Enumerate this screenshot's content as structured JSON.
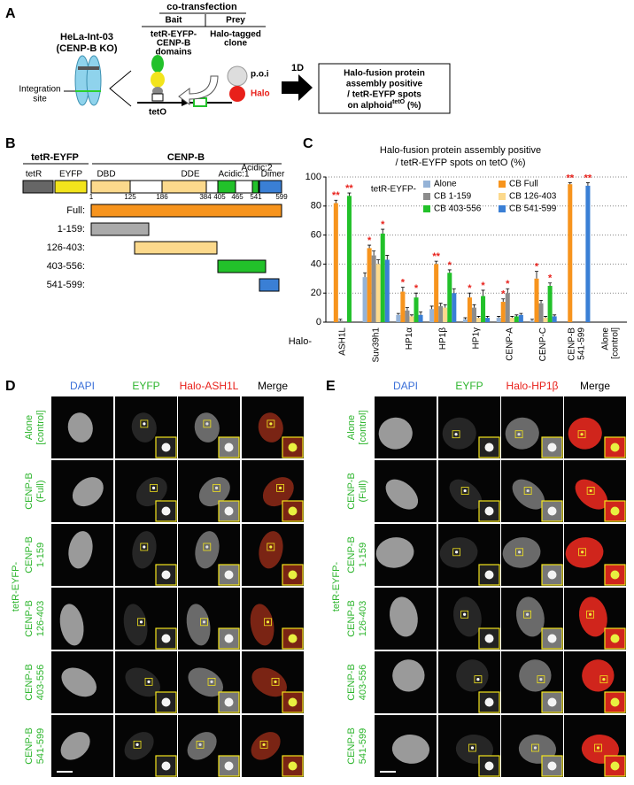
{
  "panel_a": {
    "label": "A",
    "cotransfection": "co-transfection",
    "bait": "Bait",
    "prey": "Prey",
    "bait_desc": [
      "tetR-EYFP-",
      "CENP-B",
      "domains"
    ],
    "prey_desc": [
      "Halo-tagged",
      "clone"
    ],
    "cell_line": [
      "HeLa-Int-03",
      "(CENP-B KO)"
    ],
    "integration": [
      "Integration",
      "site"
    ],
    "teto": "tetO",
    "poi": "p.o.i",
    "halo": "Halo",
    "step": "1D",
    "result_box": [
      "Halo-fusion protein",
      "assembly positive",
      "/ tetR-EYFP spots"
    ],
    "result_last": {
      "text": "on alphoid",
      "sup": "tetO",
      "tail": " (%)"
    }
  },
  "panel_b": {
    "label": "B",
    "tetr_eyfp": "tetR-EYFP",
    "cenpb": "CENP-B",
    "domains": [
      "tetR",
      "EYFP",
      "DBD",
      "DDE",
      "Acidic:1",
      "Acidic:2",
      "Dimer"
    ],
    "positions": [
      "1",
      "125",
      "186",
      "384",
      "405",
      "465",
      "541",
      "599"
    ],
    "constructs": [
      "Full:",
      "1-159:",
      "126-403:",
      "403-556:",
      "541-599:"
    ]
  },
  "chart_data": {
    "type": "bar",
    "panel_label": "C",
    "title": [
      "Halo-fusion protein assembly positive",
      "/ tetR-EYFP spots on tetO (%)"
    ],
    "x_label": "Halo-",
    "legend_title": "tetR-EYFP-",
    "categories": [
      [
        "ASH1L"
      ],
      [
        "Suv39h1"
      ],
      [
        "HP1α"
      ],
      [
        "HP1β"
      ],
      [
        "HP1γ"
      ],
      [
        "CENP-A"
      ],
      [
        "CENP-C"
      ],
      [
        "CENP-B",
        "541-599"
      ],
      [
        "Alone",
        "[control]"
      ]
    ],
    "ylim": [
      0,
      100
    ],
    "yticks": [
      0,
      20,
      40,
      60,
      80,
      100
    ],
    "grid": true,
    "series": [
      {
        "name": "Alone",
        "color": "#95b3d7",
        "values": [
          0,
          31,
          5,
          9,
          2,
          3,
          1,
          0,
          0
        ],
        "errors": [
          0,
          3,
          1,
          2,
          1,
          1,
          1,
          0,
          0
        ],
        "significance": [
          null,
          null,
          null,
          null,
          null,
          null,
          null,
          null,
          null
        ]
      },
      {
        "name": "CB Full",
        "color": "#f7941d",
        "values": [
          82,
          51,
          21,
          40,
          17,
          14,
          30,
          95,
          0
        ],
        "errors": [
          2,
          2,
          3,
          2,
          3,
          2,
          5,
          1,
          0
        ],
        "significance": [
          "**",
          "*",
          "*",
          "**",
          "*",
          "*",
          "*",
          "**",
          null
        ]
      },
      {
        "name": "CB 1-159",
        "color": "#8c8c8c",
        "values": [
          1,
          46,
          8,
          11,
          10,
          20,
          13,
          0,
          0
        ],
        "errors": [
          1,
          3,
          2,
          2,
          2,
          3,
          2,
          0,
          0
        ],
        "significance": [
          null,
          null,
          null,
          null,
          null,
          "*",
          null,
          null,
          null
        ]
      },
      {
        "name": "CB 126-403",
        "color": "#fcd98c",
        "values": [
          0,
          40,
          4,
          10,
          3,
          3,
          3,
          0,
          0
        ],
        "errors": [
          0,
          3,
          1,
          2,
          1,
          1,
          1,
          0,
          0
        ],
        "significance": [
          null,
          null,
          null,
          null,
          null,
          null,
          null,
          null,
          null
        ]
      },
      {
        "name": "CB 403-556",
        "color": "#22c12a",
        "values": [
          87,
          61,
          17,
          34,
          18,
          4,
          25,
          0,
          0
        ],
        "errors": [
          2,
          3,
          3,
          2,
          4,
          1,
          2,
          0,
          0
        ],
        "significance": [
          "**",
          "*",
          "*",
          "*",
          "*",
          null,
          "*",
          null,
          null
        ]
      },
      {
        "name": "CB 541-599",
        "color": "#3a7fd5",
        "values": [
          0,
          43,
          5,
          20,
          3,
          5,
          4,
          94,
          0
        ],
        "errors": [
          0,
          3,
          2,
          3,
          1,
          1,
          1,
          2,
          0
        ],
        "significance": [
          null,
          null,
          null,
          null,
          null,
          null,
          null,
          "**",
          null
        ]
      }
    ]
  },
  "panel_d": {
    "label": "D",
    "columns": [
      "DAPI",
      "EYFP",
      "Halo-ASH1L",
      "Merge"
    ],
    "group": "tetR-EYFP-",
    "rows": [
      [
        "Alone",
        "[control]"
      ],
      [
        "CENP-B",
        "(Full)"
      ],
      [
        "CENP-B",
        "1-159"
      ],
      [
        "CENP-B",
        "126-403"
      ],
      [
        "CENP-B",
        "403-556"
      ],
      [
        "CENP-B",
        "541-599"
      ]
    ]
  },
  "panel_e": {
    "label": "E",
    "columns": [
      "DAPI",
      "EYFP",
      "Halo-HP1β",
      "Merge"
    ],
    "group": "tetR-EYFP-",
    "rows": [
      [
        "Alone",
        "[control]"
      ],
      [
        "CENP-B",
        "(Full)"
      ],
      [
        "CENP-B",
        "1-159"
      ],
      [
        "CENP-B",
        "126-403"
      ],
      [
        "CENP-B",
        "403-556"
      ],
      [
        "CENP-B",
        "541-599"
      ]
    ]
  }
}
